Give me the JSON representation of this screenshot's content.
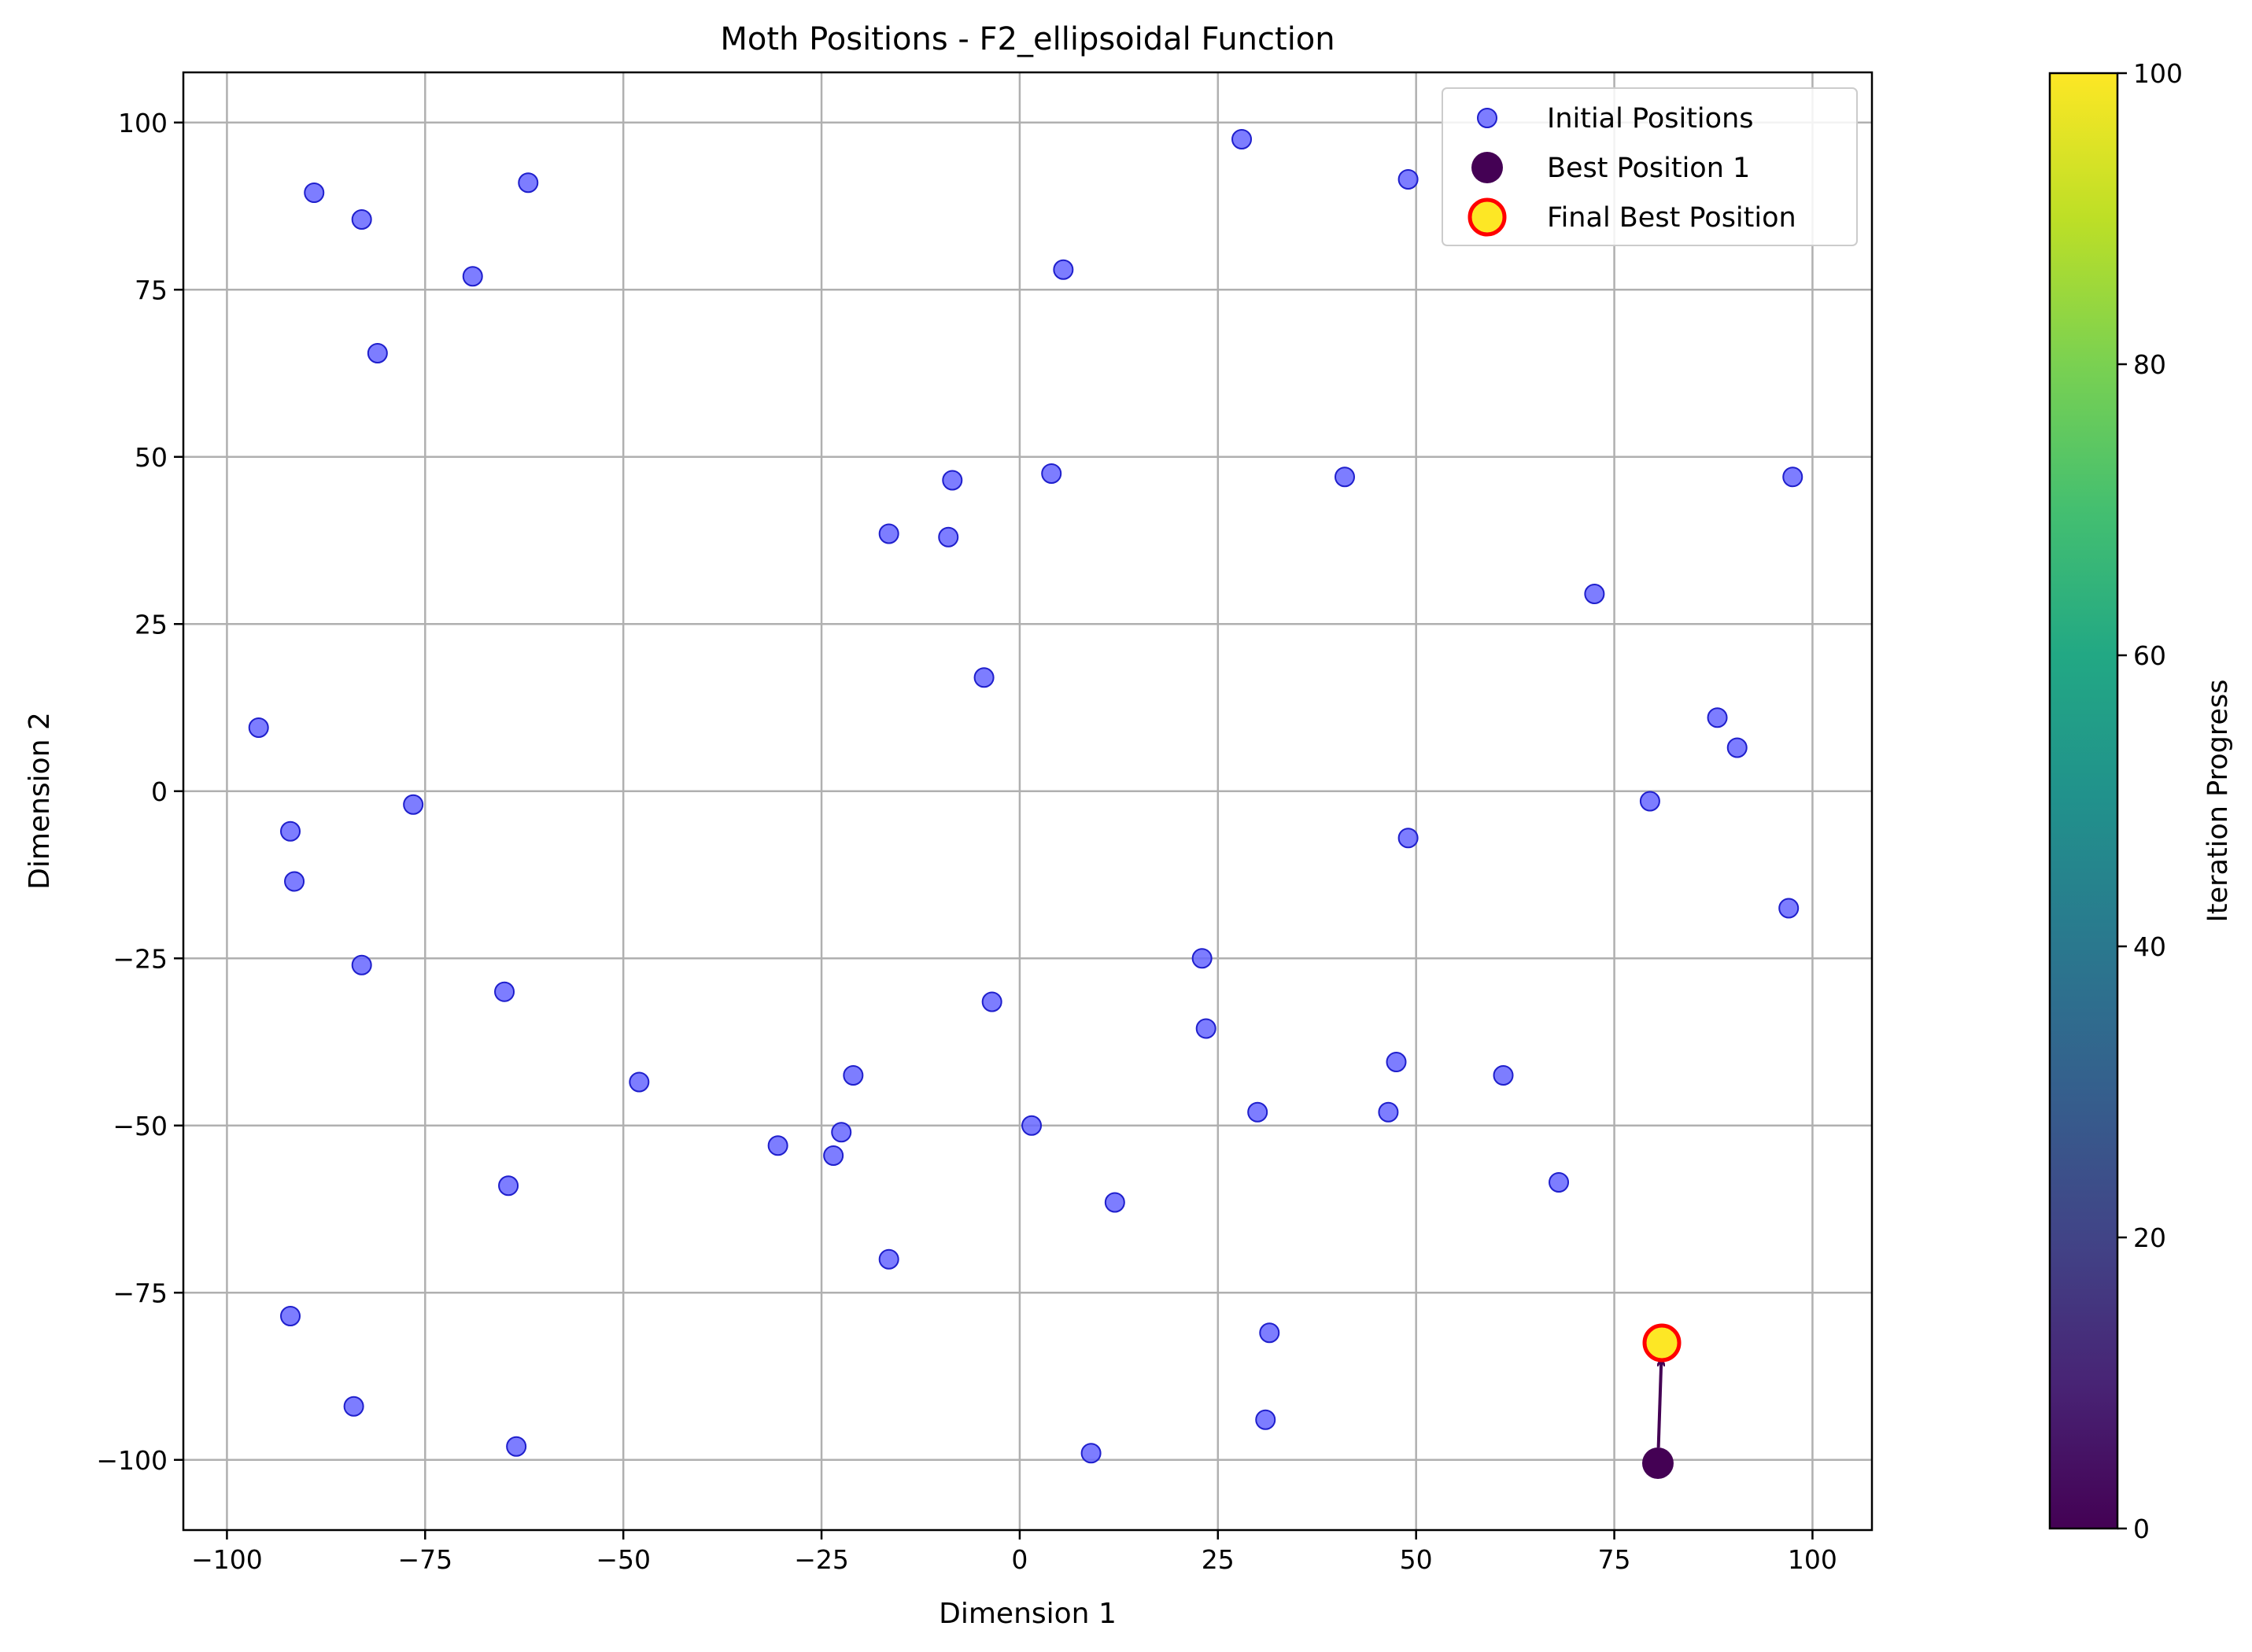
{
  "chart_data": {
    "type": "scatter",
    "title": "Moth Positions - F2_ellipsoidal Function",
    "xlabel": "Dimension 1",
    "ylabel": "Dimension 2",
    "xlim": [
      -105.5,
      107.5
    ],
    "ylim": [
      -110.5,
      107.5
    ],
    "xticks": [
      -100,
      -75,
      -50,
      -25,
      0,
      25,
      50,
      75,
      100
    ],
    "xtick_labels": [
      "−100",
      "−75",
      "−50",
      "−25",
      "0",
      "25",
      "50",
      "75",
      "100"
    ],
    "yticks": [
      -100,
      -75,
      -50,
      -25,
      0,
      25,
      50,
      75,
      100
    ],
    "ytick_labels": [
      "−100",
      "−75",
      "−50",
      "−25",
      "0",
      "25",
      "50",
      "75",
      "100"
    ],
    "grid": true,
    "legend_position": "top-right",
    "colors": {
      "initial_fill": "#6666ff",
      "initial_edge": "#1f1fcc",
      "best_1": "#440154",
      "final_fill": "#fde725",
      "final_edge": "#ff0000",
      "grid": "#b0b0b0"
    },
    "series": [
      {
        "name": "Initial Positions",
        "x": [
          -96,
          -89,
          -83,
          -81,
          -69,
          -62,
          -92,
          -91.5,
          -76.5,
          -83,
          -65,
          -64.5,
          -92,
          -84,
          -63.5,
          -48,
          -30.5,
          -23.5,
          -22.5,
          -21,
          -16.5,
          -16.5,
          -9,
          -8.5,
          -4.5,
          -3.5,
          1.5,
          4,
          5.5,
          9,
          12,
          23,
          23.5,
          28,
          30,
          31,
          31.5,
          41,
          46.5,
          47.5,
          49,
          49,
          61,
          68,
          72.5,
          79.5,
          88,
          90.5,
          97,
          97.5
        ],
        "y": [
          9.5,
          89.5,
          85.5,
          65.5,
          77,
          91,
          -6,
          -13.5,
          -2,
          -26,
          -30,
          -59,
          -78.5,
          -92,
          -98,
          -43.5,
          -53,
          -54.5,
          -51,
          -42.5,
          38.5,
          -70,
          38,
          46.5,
          17,
          -31.5,
          -50,
          47.5,
          78,
          -99,
          -61.5,
          -25,
          -35.5,
          97.5,
          -48,
          -94,
          -81,
          47,
          -48,
          -40.5,
          91.5,
          -7,
          -42.5,
          -58.5,
          29.5,
          -1.5,
          11,
          6.5,
          -17.5,
          47
        ]
      },
      {
        "name": "Best Position 1",
        "x": [
          80.5
        ],
        "y": [
          -100.5
        ]
      },
      {
        "name": "Final Best Position",
        "x": [
          81
        ],
        "y": [
          -82.5
        ]
      }
    ],
    "colorbar": {
      "label": "Iteration Progress",
      "range": [
        0,
        100
      ],
      "ticks": [
        0,
        20,
        40,
        60,
        80,
        100
      ],
      "colormap": "viridis"
    }
  }
}
